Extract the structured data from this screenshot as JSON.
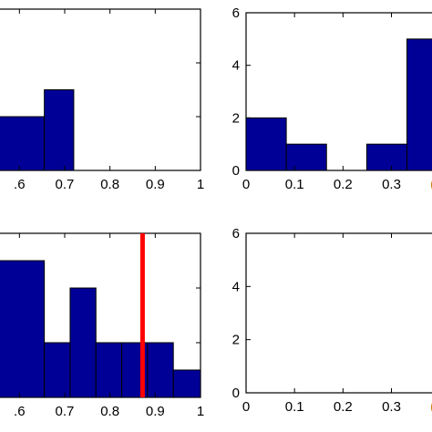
{
  "colors": {
    "bar_fill": "#000096",
    "bar_stroke": "#000000",
    "axes": "#000000",
    "marker_line": "#ff0000",
    "clipped_tick": "#d08010"
  },
  "chart_data": [
    {
      "type": "bar",
      "panel": "top-left",
      "xlim": [
        0.545,
        1.0
      ],
      "ylim": [
        0,
        6
      ],
      "grid": false,
      "xticks": [
        {
          "value": 0.6,
          "label": ".6"
        },
        {
          "value": 0.7,
          "label": "0.7"
        },
        {
          "value": 0.8,
          "label": "0.8"
        },
        {
          "value": 0.9,
          "label": "0.9"
        },
        {
          "value": 1.0,
          "label": "1"
        }
      ],
      "yticks": [
        2,
        4
      ],
      "bins": [
        {
          "x0": 0.545,
          "x1": 0.655,
          "value": 2
        },
        {
          "x0": 0.655,
          "x1": 0.72,
          "value": 3
        }
      ]
    },
    {
      "type": "bar",
      "panel": "top-right",
      "xlim": [
        0,
        0.395
      ],
      "ylim": [
        0,
        6
      ],
      "grid": false,
      "xticks": [
        {
          "value": 0,
          "label": "0"
        },
        {
          "value": 0.1,
          "label": "0.1"
        },
        {
          "value": 0.2,
          "label": "0.2"
        },
        {
          "value": 0.3,
          "label": "0.3"
        }
      ],
      "yticks": [
        {
          "value": 0,
          "label": "0"
        },
        {
          "value": 2,
          "label": "2"
        },
        {
          "value": 4,
          "label": "4"
        },
        {
          "value": 6,
          "label": "6"
        }
      ],
      "bins": [
        {
          "x0": 0,
          "x1": 0.083,
          "value": 2
        },
        {
          "x0": 0.083,
          "x1": 0.166,
          "value": 1
        },
        {
          "x0": 0.249,
          "x1": 0.332,
          "value": 1
        },
        {
          "x0": 0.332,
          "x1": 0.415,
          "value": 5
        }
      ]
    },
    {
      "type": "bar",
      "panel": "bottom-left",
      "xlim": [
        0.545,
        1.0
      ],
      "ylim": [
        0,
        6
      ],
      "grid": false,
      "xticks": [
        {
          "value": 0.6,
          "label": ".6"
        },
        {
          "value": 0.7,
          "label": "0.7"
        },
        {
          "value": 0.8,
          "label": "0.8"
        },
        {
          "value": 0.9,
          "label": "0.9"
        },
        {
          "value": 1.0,
          "label": "1"
        }
      ],
      "yticks": [
        2,
        4
      ],
      "bins": [
        {
          "x0": 0.545,
          "x1": 0.655,
          "value": 5
        },
        {
          "x0": 0.655,
          "x1": 0.712,
          "value": 2
        },
        {
          "x0": 0.712,
          "x1": 0.769,
          "value": 4
        },
        {
          "x0": 0.769,
          "x1": 0.826,
          "value": 2
        },
        {
          "x0": 0.826,
          "x1": 0.883,
          "value": 2
        },
        {
          "x0": 0.883,
          "x1": 0.94,
          "value": 2
        },
        {
          "x0": 0.94,
          "x1": 1.0,
          "value": 1
        }
      ],
      "vline": {
        "x": 0.872
      }
    },
    {
      "type": "bar",
      "panel": "bottom-right",
      "xlim": [
        0,
        0.395
      ],
      "ylim": [
        0,
        6
      ],
      "grid": false,
      "xticks": [
        {
          "value": 0,
          "label": "0"
        },
        {
          "value": 0.1,
          "label": "0.1"
        },
        {
          "value": 0.2,
          "label": "0.2"
        },
        {
          "value": 0.3,
          "label": "0.3"
        }
      ],
      "yticks": [
        {
          "value": 0,
          "label": "0"
        },
        {
          "value": 2,
          "label": "2"
        },
        {
          "value": 4,
          "label": "4"
        },
        {
          "value": 6,
          "label": "6"
        }
      ],
      "bins": []
    }
  ]
}
